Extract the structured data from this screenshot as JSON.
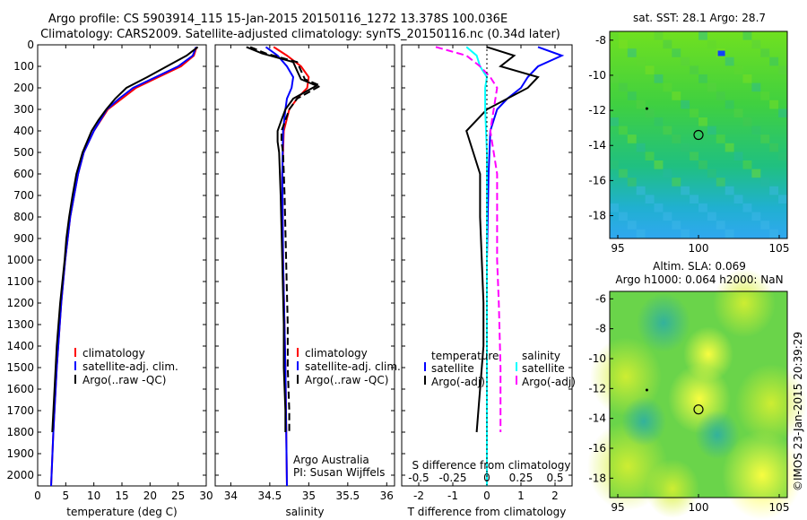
{
  "header": {
    "line1": "Argo profile: CS 5903914_115 15-Jan-2015 20150116_1272 13.378S 100.036E",
    "line2": "Climatology: CARS2009. Satellite-adjusted climatology: synTS_20150116.nc (0.34d later)"
  },
  "colors": {
    "climatology": "#ff0000",
    "satellite": "#0000ff",
    "argo": "#000000",
    "sat_salinity": "#00ffff",
    "argo_salinity_adj": "#ff00ff"
  },
  "chart_data": [
    {
      "type": "line",
      "xlabel": "temperature (deg C)",
      "ylabel": "",
      "xlim": [
        0,
        30
      ],
      "ylim": [
        2050,
        0
      ],
      "xticks": [
        "0",
        "5",
        "10",
        "15",
        "20",
        "25",
        "30"
      ],
      "yticks": [
        "0",
        "100",
        "200",
        "300",
        "400",
        "500",
        "600",
        "700",
        "800",
        "900",
        "1000",
        "1100",
        "1200",
        "1300",
        "1400",
        "1500",
        "1600",
        "1700",
        "1800",
        "1900",
        "2000"
      ],
      "legend": [
        "climatology",
        "satellite-adj. clim.",
        "Argo(..raw -QC)"
      ],
      "legend_placement": "lower-right",
      "series": [
        {
          "name": "climatology",
          "color": "#ff0000",
          "depth": [
            10,
            50,
            100,
            150,
            200,
            250,
            300,
            400,
            500,
            600,
            800,
            1000,
            1200,
            1500,
            1800,
            2050
          ],
          "values": [
            28.3,
            27.8,
            25.5,
            21.5,
            17.5,
            15.0,
            12.5,
            10.0,
            8.2,
            7.2,
            5.8,
            4.9,
            4.2,
            3.4,
            2.8,
            2.4
          ]
        },
        {
          "name": "satellite-adj. clim.",
          "color": "#0000ff",
          "depth": [
            10,
            50,
            100,
            150,
            200,
            250,
            300,
            400,
            500,
            600,
            800,
            1000,
            1200,
            1500,
            1800,
            2050
          ],
          "values": [
            28.2,
            27.6,
            25.0,
            21.0,
            17.0,
            14.5,
            12.3,
            10.0,
            8.2,
            7.2,
            5.8,
            4.9,
            4.2,
            3.4,
            2.8,
            2.4
          ]
        },
        {
          "name": "Argo(..raw -QC)",
          "color": "#000000",
          "depth": [
            10,
            50,
            100,
            150,
            200,
            250,
            300,
            350,
            400,
            500,
            600,
            700,
            800,
            900,
            1000,
            1200,
            1400,
            1600,
            1800
          ],
          "values": [
            28.5,
            26.5,
            23.0,
            19.5,
            15.8,
            13.8,
            12.2,
            10.8,
            9.6,
            8.0,
            6.9,
            6.2,
            5.6,
            5.1,
            4.8,
            4.0,
            3.4,
            3.0,
            2.6
          ]
        }
      ]
    },
    {
      "type": "line",
      "xlabel": "salinity",
      "ylabel": "",
      "xlim": [
        33.8,
        36.1
      ],
      "ylim": [
        2050,
        0
      ],
      "xticks": [
        "34",
        "34.5",
        "35",
        "35.5",
        "36"
      ],
      "legend": [
        "climatology",
        "satellite-adj. clim.",
        "Argo(..raw -QC)"
      ],
      "legend_placement": "lower-right",
      "annotation": [
        "Argo Australia",
        "PI: Susan Wijffels"
      ],
      "series": [
        {
          "name": "climatology",
          "color": "#ff0000",
          "depth": [
            10,
            50,
            100,
            150,
            200,
            250,
            300,
            400,
            600,
            1000,
            1500,
            2050
          ],
          "values": [
            34.55,
            34.72,
            34.9,
            35.0,
            34.98,
            34.85,
            34.75,
            34.68,
            34.66,
            34.67,
            34.7,
            34.72
          ]
        },
        {
          "name": "satellite-adj. clim.",
          "color": "#0000ff",
          "depth": [
            10,
            50,
            100,
            150,
            200,
            250,
            300,
            400,
            600,
            1000,
            1500,
            2050
          ],
          "values": [
            34.45,
            34.6,
            34.72,
            34.8,
            34.78,
            34.72,
            34.7,
            34.67,
            34.66,
            34.67,
            34.7,
            34.72
          ]
        },
        {
          "name": "Argo(..raw -QC)",
          "color": "#000000",
          "depth": [
            10,
            40,
            80,
            120,
            160,
            190,
            210,
            250,
            300,
            350,
            400,
            450,
            500,
            700,
            1000,
            1300,
            1500,
            1700,
            1800
          ],
          "values": [
            34.2,
            34.4,
            34.8,
            34.85,
            34.9,
            35.1,
            35.0,
            34.8,
            34.7,
            34.65,
            34.6,
            34.6,
            34.62,
            34.64,
            34.66,
            34.68,
            34.68,
            34.7,
            34.7
          ]
        }
      ]
    },
    {
      "type": "line",
      "xlabel": "T difference from climatology",
      "title_bottom": "S difference from climatology",
      "ylabel": "",
      "xlim": [
        -2.5,
        2.5
      ],
      "ylim": [
        2050,
        0
      ],
      "xticks": [
        "-2",
        "-1",
        "0",
        "1",
        "2"
      ],
      "sticks": [
        "-0.5",
        "-0.25",
        "0",
        "0.25",
        "0.5"
      ],
      "legend_temperature_title": "temperature",
      "legend_salinity_title": "salinity",
      "legend_temperature": [
        "satellite",
        "Argo(-adj)"
      ],
      "legend_salinity": [
        "satellite",
        "Argo(-adj)"
      ],
      "series": [
        {
          "name": "satellite",
          "color": "#0000ff",
          "depth": [
            10,
            50,
            100,
            150,
            200,
            250,
            300,
            400,
            600,
            1000,
            2050
          ],
          "values": [
            1.5,
            2.2,
            1.5,
            1.2,
            1.0,
            0.6,
            0.3,
            0.1,
            0.05,
            0.0,
            0.0
          ]
        },
        {
          "name": "Argo(-adj)",
          "color": "#000000",
          "depth": [
            10,
            50,
            100,
            150,
            200,
            300,
            400,
            500,
            600,
            800,
            1000,
            1200,
            1400,
            1600,
            1800
          ],
          "values": [
            0.0,
            0.8,
            0.4,
            1.5,
            1.2,
            0.0,
            -0.6,
            -0.4,
            -0.2,
            -0.2,
            -0.15,
            -0.1,
            -0.1,
            -0.2,
            -0.3
          ]
        },
        {
          "name": "satellite",
          "color": "#00ffff",
          "depth": [
            10,
            50,
            100,
            150,
            200,
            300,
            500,
            1000,
            2050
          ],
          "values": [
            -0.6,
            -0.3,
            -0.2,
            0.0,
            -0.05,
            -0.05,
            0.0,
            0.0,
            0.0
          ]
        },
        {
          "name": "Argo(-adj)",
          "color": "#ff00ff",
          "depth": [
            10,
            50,
            100,
            150,
            200,
            300,
            400,
            500,
            600,
            800,
            1000,
            1200,
            1500,
            1800
          ],
          "values": [
            -1.5,
            -0.6,
            -0.2,
            0.1,
            0.3,
            0.2,
            0.1,
            0.2,
            0.3,
            0.3,
            0.3,
            0.35,
            0.4,
            0.4
          ]
        }
      ]
    },
    {
      "type": "heatmap",
      "title": "sat. SST: 28.1  Argo: 28.7",
      "xlim": [
        94.5,
        105.5
      ],
      "ylim": [
        -19.3,
        -7.5
      ],
      "xticks": [
        "95",
        "100",
        "105"
      ],
      "yticks": [
        "-8",
        "-10",
        "-12",
        "-14",
        "-16",
        "-18"
      ],
      "marker": {
        "lon": 100.0,
        "lat": -13.4
      },
      "dot": {
        "lon": 96.8,
        "lat": -11.9
      }
    },
    {
      "type": "heatmap",
      "title": "Altim. SLA: 0.069",
      "subtitle": "Argo h1000: 0.064 h2000: NaN",
      "xlim": [
        94.5,
        105.5
      ],
      "ylim": [
        -19.3,
        -5.5
      ],
      "xticks": [
        "95",
        "100",
        "105"
      ],
      "yticks": [
        "-6",
        "-8",
        "-10",
        "-12",
        "-14",
        "-16",
        "-18"
      ],
      "marker": {
        "lon": 100.0,
        "lat": -13.4
      },
      "dot": {
        "lon": 96.8,
        "lat": -12.1
      }
    }
  ],
  "footer": {
    "credit": "©IMOS 23-Jan-2015 20:39:29"
  }
}
